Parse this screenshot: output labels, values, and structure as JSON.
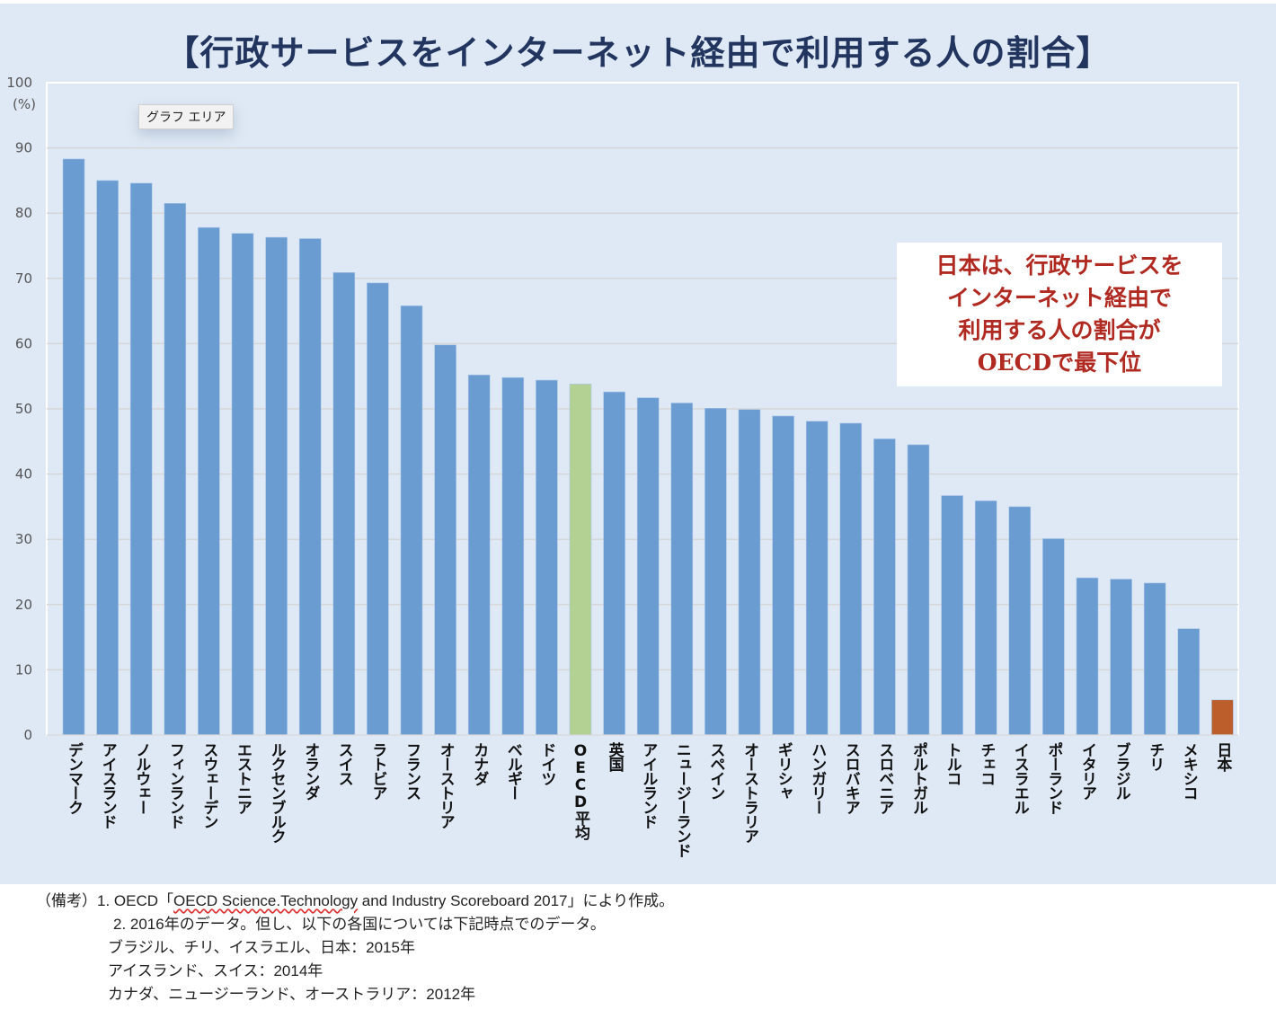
{
  "chart_data": {
    "type": "bar",
    "title": "【行政サービスをインターネット経由で利用する人の割合】",
    "xlabel": "",
    "ylabel": "(%)",
    "ylim": [
      0,
      100
    ],
    "yticks": [
      0,
      10,
      20,
      30,
      40,
      50,
      60,
      70,
      80,
      90,
      100
    ],
    "grid": true,
    "legend": "none",
    "categories": [
      "デンマーク",
      "アイスランド",
      "ノルウェー",
      "フィンランド",
      "スウェーデン",
      "エストニア",
      "ルクセンブルク",
      "オランダ",
      "スイス",
      "ラトビア",
      "フランス",
      "オーストリア",
      "カナダ",
      "ベルギー",
      "ドイツ",
      "OECD平均",
      "英国",
      "アイルランド",
      "ニュージーランド",
      "スペイン",
      "オーストラリア",
      "ギリシャ",
      "ハンガリー",
      "スロバキア",
      "スロベニア",
      "ポルトガル",
      "トルコ",
      "チェコ",
      "イスラエル",
      "ポーランド",
      "イタリア",
      "ブラジル",
      "チリ",
      "メキシコ",
      "日本"
    ],
    "values": [
      88.3,
      85.0,
      84.6,
      81.5,
      77.8,
      76.9,
      76.3,
      76.1,
      70.9,
      69.3,
      65.8,
      59.8,
      55.2,
      54.8,
      54.4,
      53.8,
      52.6,
      51.7,
      50.9,
      50.1,
      49.9,
      48.9,
      48.1,
      47.8,
      45.4,
      44.5,
      36.7,
      35.9,
      35.0,
      30.1,
      24.1,
      23.9,
      23.3,
      16.3,
      5.4
    ],
    "highlight": {
      "OECD平均": "#b3d193",
      "日本": "#bb5e2b"
    },
    "bar_color": "#6a9bd1"
  },
  "tooltip": "グラフ エリア",
  "callout": {
    "lines": [
      "日本は、行政サービスを",
      "インターネット経由で",
      "利用する人の割合が",
      "OECDで最下位"
    ],
    "color": "#b02a22"
  },
  "notes": {
    "prefix": "（備考）",
    "line1_a": "1. OECD「",
    "line1_b": "OECD Science.Technology",
    "line1_c": " and Industry Scoreboard 2017」により作成。",
    "line2": "2. 2016年のデータ。但し、以下の各国については下記時点でのデータ。",
    "line3": "ブラジル、チリ、イスラエル、日本：2015年",
    "line4": "アイスランド、スイス：2014年",
    "line5": "カナダ、ニュージーランド、オーストラリア：2012年"
  }
}
